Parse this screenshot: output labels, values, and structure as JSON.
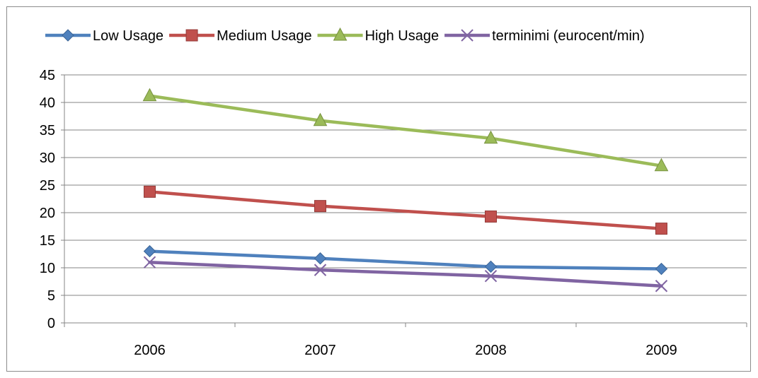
{
  "chart_data": {
    "type": "line",
    "title": "",
    "xlabel": "",
    "ylabel": "",
    "categories": [
      "2006",
      "2007",
      "2008",
      "2009"
    ],
    "ylim": [
      0,
      45
    ],
    "yticks": [
      0,
      5,
      10,
      15,
      20,
      25,
      30,
      35,
      40,
      45
    ],
    "grid": "horizontal",
    "legend_position": "top",
    "series": [
      {
        "name": "Low Usage",
        "values": [
          13.0,
          11.7,
          10.2,
          9.8
        ],
        "color": "#4f81bd",
        "marker": "diamond"
      },
      {
        "name": "Medium Usage",
        "values": [
          23.8,
          21.2,
          19.3,
          17.1
        ],
        "color": "#c0504d",
        "marker": "square"
      },
      {
        "name": "High Usage",
        "values": [
          41.2,
          36.7,
          33.5,
          28.5
        ],
        "color": "#9bbb59",
        "marker": "triangle"
      },
      {
        "name": "terminimi (eurocent/min)",
        "values": [
          11.0,
          9.6,
          8.5,
          6.7
        ],
        "color": "#8064a2",
        "marker": "x"
      }
    ]
  }
}
